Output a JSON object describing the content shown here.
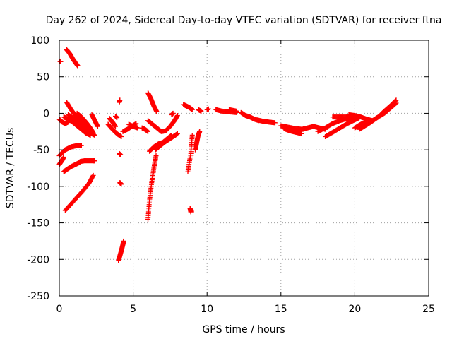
{
  "chart_data": {
    "type": "scatter",
    "title": "Day 262 of 2024, Sidereal Day-to-day VTEC variation (SDTVAR) for receiver ftna",
    "xlabel": "GPS time / hours",
    "ylabel": "SDTVAR / TECUs",
    "xlim": [
      0,
      25
    ],
    "ylim": [
      -250,
      100
    ],
    "xticks": [
      0,
      5,
      10,
      15,
      20,
      25
    ],
    "yticks": [
      -250,
      -200,
      -150,
      -100,
      -50,
      0,
      50,
      100
    ],
    "grid": true,
    "marker": "plus",
    "color": "#ff0000",
    "segments": [
      {
        "x": [
          0.05,
          0.1
        ],
        "y": [
          71,
          71
        ]
      },
      {
        "x": [
          0.5,
          0.7,
          0.9,
          1.1,
          1.25
        ],
        "y": [
          87,
          82,
          75,
          69,
          65
        ]
      },
      {
        "x": [
          0.0,
          0.2,
          0.4,
          0.6,
          0.8,
          1.0,
          1.3,
          1.5
        ],
        "y": [
          -58,
          -54,
          -50,
          -48,
          -46,
          -45,
          -44,
          -44
        ]
      },
      {
        "x": [
          0.0,
          0.1,
          0.2,
          0.3
        ],
        "y": [
          -70,
          -67,
          -64,
          -60
        ]
      },
      {
        "x": [
          0.3,
          0.5,
          0.8,
          1.1,
          1.4
        ],
        "y": [
          -80,
          -77,
          -73,
          -70,
          -67
        ]
      },
      {
        "x": [
          1.4,
          1.7,
          2.0,
          2.3,
          2.4
        ],
        "y": [
          -66,
          -65,
          -65,
          -65,
          -65
        ]
      },
      {
        "x": [
          0.4,
          0.8,
          1.2,
          1.6,
          2.0,
          2.3
        ],
        "y": [
          -133,
          -124,
          -115,
          -106,
          -96,
          -85
        ]
      },
      {
        "x": [
          0.0,
          0.2,
          0.4,
          0.6
        ],
        "y": [
          -8,
          -12,
          -14,
          -12
        ]
      },
      {
        "x": [
          0.5,
          0.8,
          1.1,
          1.4,
          1.7,
          2.0,
          2.3
        ],
        "y": [
          15,
          5,
          -3,
          -10,
          -17,
          -23,
          -28
        ]
      },
      {
        "x": [
          0.3,
          0.6,
          0.9,
          1.2,
          1.5,
          1.8,
          2.1
        ],
        "y": [
          -5,
          -8,
          -12,
          -17,
          -22,
          -27,
          -30
        ]
      },
      {
        "x": [
          0.6,
          0.9,
          1.2,
          1.5,
          1.8,
          2.1,
          2.4
        ],
        "y": [
          -2,
          -6,
          -11,
          -16,
          -22,
          -27,
          -30
        ]
      },
      {
        "x": [
          1.2,
          1.5,
          1.8,
          2.1,
          2.3
        ],
        "y": [
          0,
          -5,
          -12,
          -20,
          -27
        ]
      },
      {
        "x": [
          2.2,
          2.4,
          2.6
        ],
        "y": [
          -2,
          -10,
          -18
        ]
      },
      {
        "x": [
          3.3,
          3.6,
          3.9,
          4.2
        ],
        "y": [
          -15,
          -22,
          -28,
          -32
        ]
      },
      {
        "x": [
          3.4,
          3.6,
          3.8
        ],
        "y": [
          -7,
          -12,
          -18
        ]
      },
      {
        "x": [
          3.8,
          3.9
        ],
        "y": [
          -4,
          -6
        ]
      },
      {
        "x": [
          4.3,
          4.6,
          4.9,
          5.2
        ],
        "y": [
          -25,
          -22,
          -18,
          -14
        ]
      },
      {
        "x": [
          4.7,
          5.0,
          5.3
        ],
        "y": [
          -15,
          -18,
          -20
        ]
      },
      {
        "x": [
          4.05,
          4.1
        ],
        "y": [
          15,
          18
        ]
      },
      {
        "x": [
          4.05,
          4.15
        ],
        "y": [
          -55,
          -57
        ]
      },
      {
        "x": [
          4.1,
          4.2
        ],
        "y": [
          -95,
          -97
        ]
      },
      {
        "x": [
          4.0,
          4.1,
          4.2,
          4.3,
          4.35
        ],
        "y": [
          -202,
          -195,
          -188,
          -180,
          -175
        ]
      },
      {
        "x": [
          6.0,
          6.1,
          6.25,
          6.4,
          6.55
        ],
        "y": [
          -145,
          -120,
          -95,
          -75,
          -58
        ]
      },
      {
        "x": [
          6.5,
          6.8,
          7.1,
          7.4,
          7.7,
          8.0
        ],
        "y": [
          -50,
          -45,
          -40,
          -36,
          -32,
          -28
        ]
      },
      {
        "x": [
          6.1,
          6.4,
          6.7,
          7.0,
          7.3,
          7.6
        ],
        "y": [
          -52,
          -46,
          -42,
          -40,
          -35,
          -30
        ]
      },
      {
        "x": [
          6.0,
          6.2,
          6.4,
          6.6
        ],
        "y": [
          28,
          20,
          10,
          2
        ]
      },
      {
        "x": [
          6.0,
          6.3,
          6.6,
          6.9,
          7.2,
          7.5,
          7.8,
          8.0
        ],
        "y": [
          -10,
          -15,
          -20,
          -25,
          -24,
          -18,
          -10,
          -3
        ]
      },
      {
        "x": [
          5.6,
          5.8,
          6.0
        ],
        "y": [
          -20,
          -22,
          -25
        ]
      },
      {
        "x": [
          7.6,
          7.7
        ],
        "y": [
          -2,
          0
        ]
      },
      {
        "x": [
          8.4,
          8.6,
          8.8,
          9.0
        ],
        "y": [
          12,
          10,
          8,
          5
        ]
      },
      {
        "x": [
          8.7,
          8.9,
          9.0
        ],
        "y": [
          -80,
          -55,
          -30
        ]
      },
      {
        "x": [
          8.85,
          8.9
        ],
        "y": [
          -130,
          -135
        ]
      },
      {
        "x": [
          9.2,
          9.3,
          9.4,
          9.5
        ],
        "y": [
          -50,
          -40,
          -30,
          -25
        ]
      },
      {
        "x": [
          9.4,
          9.6
        ],
        "y": [
          5,
          3
        ]
      },
      {
        "x": [
          10.0,
          10.1
        ],
        "y": [
          5,
          6
        ]
      },
      {
        "x": [
          10.6,
          11.0,
          11.5,
          12.0
        ],
        "y": [
          5,
          3,
          2,
          1
        ]
      },
      {
        "x": [
          11.5,
          12.0
        ],
        "y": [
          5,
          3
        ]
      },
      {
        "x": [
          12.3,
          12.6,
          12.9,
          13.2,
          13.5
        ],
        "y": [
          1,
          -3,
          -5,
          -8,
          -10
        ]
      },
      {
        "x": [
          13.4,
          13.8,
          14.2,
          14.6
        ],
        "y": [
          -9,
          -11,
          -12,
          -13
        ]
      },
      {
        "x": [
          15.0,
          15.5,
          16.0,
          16.5
        ],
        "y": [
          -17,
          -19,
          -21,
          -22
        ]
      },
      {
        "x": [
          15.2,
          15.6,
          16.0,
          16.4
        ],
        "y": [
          -21,
          -24,
          -26,
          -28
        ]
      },
      {
        "x": [
          16.0,
          16.4,
          16.8,
          17.2
        ],
        "y": [
          -25,
          -22,
          -20,
          -18
        ]
      },
      {
        "x": [
          17.2,
          17.6,
          18.0
        ],
        "y": [
          -18,
          -20,
          -22
        ]
      },
      {
        "x": [
          17.5,
          18.0,
          18.5,
          19.0,
          19.5,
          20.0
        ],
        "y": [
          -25,
          -20,
          -14,
          -10,
          -7,
          -6
        ]
      },
      {
        "x": [
          18.0,
          18.5,
          19.0,
          19.5,
          20.0,
          20.3
        ],
        "y": [
          -32,
          -26,
          -20,
          -14,
          -9,
          -6
        ]
      },
      {
        "x": [
          18.5,
          19.0,
          19.5,
          20.0
        ],
        "y": [
          -5,
          -5,
          -5,
          -5
        ]
      },
      {
        "x": [
          19.6,
          20.0,
          20.4,
          20.8,
          21.2
        ],
        "y": [
          -2,
          -3,
          -5,
          -8,
          -10
        ]
      },
      {
        "x": [
          20.3,
          20.7,
          21.1,
          21.5,
          22.0,
          22.4,
          22.8
        ],
        "y": [
          -22,
          -17,
          -12,
          -6,
          0,
          7,
          14
        ]
      },
      {
        "x": [
          21.2,
          21.6,
          22.0,
          22.4,
          22.8
        ],
        "y": [
          -10,
          -5,
          3,
          10,
          18
        ]
      },
      {
        "x": [
          20.0,
          20.4,
          20.8
        ],
        "y": [
          -20,
          -15,
          -12
        ]
      }
    ]
  }
}
